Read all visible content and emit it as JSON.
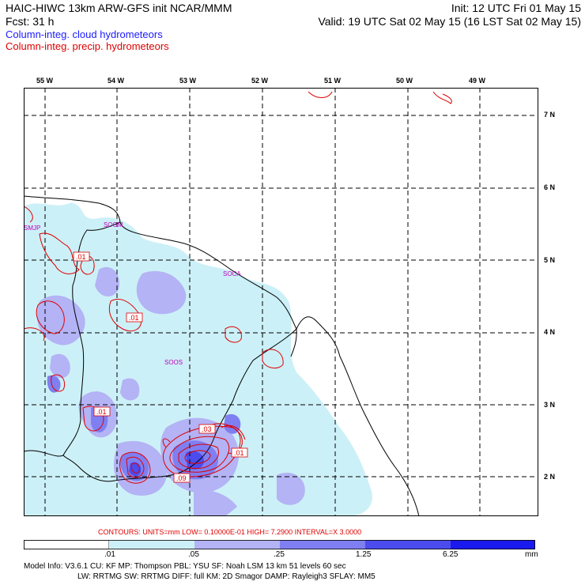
{
  "header": {
    "line1_left": "HAIC-HIWC 13km ARW-GFS init   NCAR/MMM",
    "line2_left": "Fcst:   31 h",
    "line1_right": "Init: 12 UTC Fri 01 May 15",
    "line2_right": "Valid: 19 UTC Sat 02 May 15 (16 LST Sat 02 May 15)"
  },
  "legend": {
    "cloud": "Column-integ. cloud hydrometeors",
    "precip": "Column-integ. precip. hydrometeors",
    "cloud_color": "#1a1aff",
    "precip_color": "#e00000"
  },
  "map": {
    "lon_labels": [
      "55 W",
      "54 W",
      "53 W",
      "52 W",
      "51 W",
      "50 W",
      "49 W"
    ],
    "lat_labels": [
      "7 N",
      "6 N",
      "5 N",
      "4 N",
      "3 N",
      "2 N"
    ],
    "stations": [
      "SMJP",
      "SOGM",
      "SOCA",
      "SOOS"
    ],
    "contour_labels": [
      ".01",
      ".01",
      ".01",
      ".03",
      ".01",
      ".09"
    ]
  },
  "contours_info": {
    "text": "CONTOURS:  UNITS=mm   LOW= 0.10000E-01   HIGH=  7.2900      INTERVAL=X  3.0000"
  },
  "colorbar": {
    "labels": [
      ".01",
      ".05",
      ".25",
      "1.25",
      "6.25"
    ],
    "units": "mm",
    "colors": [
      "#ffffff",
      "#ccf0f7",
      "#b3b3f5",
      "#7f7ff2",
      "#4c4cee",
      "#1a1aee"
    ]
  },
  "model_info": {
    "line1": "Model Info: V3.6.1     CU: KF        MP: Thompson     PBL: YSU         SF: Noah LSM      13 km    51 levels   60 sec",
    "line2": "LW: RRTMG    SW: RRTMG   DIFF: full    KM: 2D Smagor DAMP: Rayleigh3   SFLAY: MM5"
  }
}
